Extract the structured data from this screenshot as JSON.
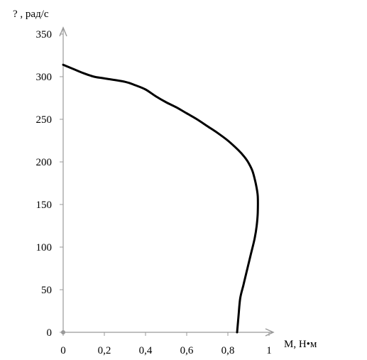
{
  "chart_data": {
    "type": "line",
    "title": "",
    "xlabel": "М, Н•м",
    "ylabel": "? , рад/с",
    "xlim": [
      0,
      1
    ],
    "ylim": [
      0,
      350
    ],
    "x_ticks": [
      "0",
      "0,2",
      "0,4",
      "0,6",
      "0,8",
      "1"
    ],
    "x_tick_values": [
      0,
      0.2,
      0.4,
      0.6,
      0.8,
      1
    ],
    "y_ticks": [
      "0",
      "50",
      "100",
      "150",
      "200",
      "250",
      "300",
      "350"
    ],
    "y_tick_values": [
      0,
      50,
      100,
      150,
      200,
      250,
      300,
      350
    ],
    "grid": false,
    "legend": "none",
    "series": [
      {
        "color": "#000000",
        "points": [
          [
            0.0,
            314
          ],
          [
            0.05,
            309
          ],
          [
            0.1,
            304
          ],
          [
            0.15,
            300
          ],
          [
            0.2,
            298
          ],
          [
            0.3,
            294
          ],
          [
            0.35,
            290
          ],
          [
            0.4,
            285
          ],
          [
            0.45,
            277
          ],
          [
            0.5,
            270
          ],
          [
            0.55,
            264
          ],
          [
            0.6,
            257
          ],
          [
            0.65,
            250
          ],
          [
            0.7,
            242
          ],
          [
            0.75,
            234
          ],
          [
            0.8,
            225
          ],
          [
            0.85,
            214
          ],
          [
            0.88,
            206
          ],
          [
            0.9,
            199
          ],
          [
            0.92,
            189
          ],
          [
            0.935,
            175
          ],
          [
            0.945,
            160
          ],
          [
            0.945,
            140
          ],
          [
            0.94,
            125
          ],
          [
            0.93,
            110
          ],
          [
            0.91,
            90
          ],
          [
            0.89,
            70
          ],
          [
            0.875,
            55
          ],
          [
            0.86,
            40
          ],
          [
            0.852,
            20
          ],
          [
            0.845,
            0
          ]
        ]
      }
    ],
    "colors": {
      "axis": "#999999",
      "line": "#000000",
      "text": "#000000"
    }
  }
}
